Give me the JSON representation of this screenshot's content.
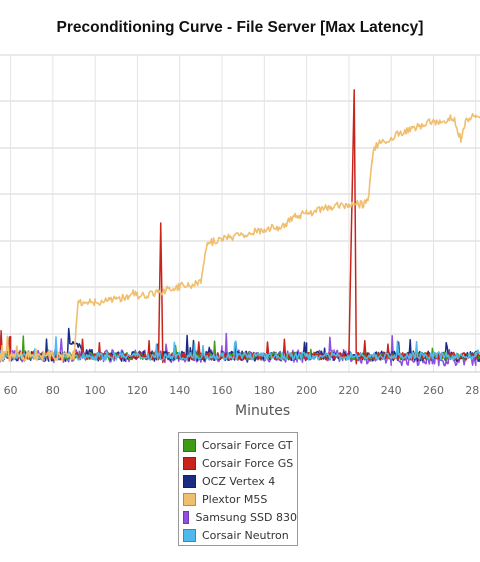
{
  "chart_data": {
    "type": "line",
    "title": "Preconditioning Curve - File Server [Max Latency]",
    "xlabel": "Minutes",
    "ylabel": "",
    "x_ticks": [
      60,
      80,
      100,
      120,
      140,
      160,
      180,
      200,
      220,
      240,
      260,
      280
    ],
    "xlim": [
      55,
      282
    ],
    "ylim": [
      0,
      1
    ],
    "grid": true,
    "legend_position": "bottom",
    "series": [
      {
        "name": "Corsair Force GT",
        "color": "#3f9b16",
        "x": [
          55,
          60,
          80,
          100,
          120,
          140,
          160,
          180,
          200,
          220,
          240,
          260,
          280
        ],
        "y": [
          0.05,
          0.05,
          0.05,
          0.05,
          0.05,
          0.05,
          0.05,
          0.05,
          0.05,
          0.05,
          0.05,
          0.05,
          0.05
        ]
      },
      {
        "name": "Corsair Force GS",
        "color": "#c8241c",
        "x": [
          55,
          55.5,
          56,
          57,
          60,
          80,
          100,
          120,
          130,
          131,
          132,
          133,
          140,
          160,
          180,
          200,
          220,
          222.5,
          223.5,
          224.5,
          240,
          260,
          280
        ],
        "y": [
          0.05,
          0.13,
          0.05,
          0.05,
          0.05,
          0.05,
          0.05,
          0.05,
          0.05,
          0.47,
          0.04,
          0.05,
          0.05,
          0.05,
          0.05,
          0.05,
          0.05,
          0.89,
          0.03,
          0.05,
          0.05,
          0.05,
          0.05
        ]
      },
      {
        "name": "OCZ Vertex 4",
        "color": "#1a2c82",
        "x": [
          55,
          60,
          80,
          86,
          88,
          100,
          120,
          140,
          160,
          180,
          200,
          220,
          240,
          260,
          280
        ],
        "y": [
          0.05,
          0.05,
          0.05,
          0.05,
          0.09,
          0.05,
          0.05,
          0.05,
          0.05,
          0.05,
          0.05,
          0.05,
          0.05,
          0.05,
          0.05
        ]
      },
      {
        "name": "Plextor M5S",
        "color": "#efbe6e",
        "x": [
          55,
          60,
          80,
          88,
          90,
          92,
          100,
          110,
          116,
          118,
          120,
          130,
          140,
          150,
          151,
          153,
          155,
          160,
          170,
          180,
          190,
          192,
          194,
          200,
          210,
          220,
          227,
          229,
          230,
          231,
          232,
          234,
          240,
          250,
          260,
          270,
          273,
          275,
          280
        ],
        "y": [
          0.05,
          0.05,
          0.05,
          0.05,
          0.05,
          0.22,
          0.22,
          0.23,
          0.24,
          0.25,
          0.24,
          0.25,
          0.27,
          0.28,
          0.33,
          0.4,
          0.41,
          0.42,
          0.43,
          0.45,
          0.46,
          0.48,
          0.49,
          0.5,
          0.52,
          0.53,
          0.53,
          0.54,
          0.6,
          0.66,
          0.71,
          0.72,
          0.74,
          0.77,
          0.79,
          0.8,
          0.73,
          0.79,
          0.81
        ]
      },
      {
        "name": "Samsung SSD 830",
        "color": "#8f4fe2",
        "x": [
          55,
          60,
          80,
          100,
          120,
          140,
          160,
          180,
          200,
          220,
          240,
          260,
          280
        ],
        "y": [
          0.05,
          0.05,
          0.05,
          0.05,
          0.05,
          0.05,
          0.05,
          0.05,
          0.05,
          0.05,
          0.04,
          0.04,
          0.04
        ]
      },
      {
        "name": "Corsair Neutron",
        "color": "#4db9ec",
        "x": [
          55,
          60,
          80,
          100,
          120,
          140,
          160,
          180,
          200,
          220,
          240,
          260,
          280
        ],
        "y": [
          0.05,
          0.05,
          0.05,
          0.05,
          0.05,
          0.05,
          0.05,
          0.05,
          0.05,
          0.05,
          0.05,
          0.05,
          0.05
        ]
      }
    ]
  }
}
